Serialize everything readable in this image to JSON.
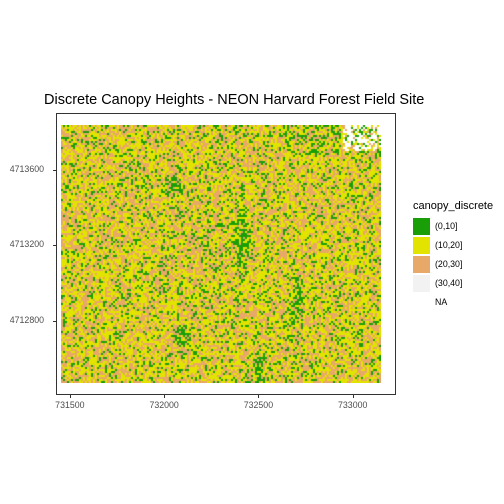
{
  "title": "Discrete Canopy Heights - NEON Harvard Forest Field Site",
  "chart_data": {
    "type": "heatmap",
    "title": "Discrete Canopy Heights - NEON Harvard Forest Field Site",
    "xlabel": "",
    "ylabel": "",
    "x_ticks": [
      731500,
      732000,
      732500,
      733000
    ],
    "y_ticks": [
      4712800,
      4713200,
      4713600
    ],
    "xlim": [
      731453,
      733150
    ],
    "ylim": [
      4712471,
      4713838
    ],
    "legend": {
      "title": "canopy_discrete",
      "position": "right",
      "items": [
        {
          "label": "(0,10]",
          "color": "#1a9e08"
        },
        {
          "label": "(10,20]",
          "color": "#e3e300"
        },
        {
          "label": "(20,30]",
          "color": "#e8a868"
        },
        {
          "label": "(30,40]",
          "color": "#f2f2f2"
        },
        {
          "label": "NA",
          "color": "#ffffff"
        }
      ]
    },
    "grid": false
  }
}
